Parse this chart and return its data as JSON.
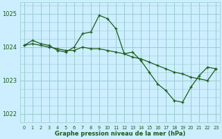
{
  "title": "Graphe pression niveau de la mer (hPa)",
  "bg_color": "#cceeff",
  "grid_color": "#99cccc",
  "line_color": "#1a5c1a",
  "xlabel_color": "#1a5c1a",
  "x_ticks": [
    0,
    1,
    2,
    3,
    4,
    5,
    6,
    7,
    8,
    9,
    10,
    11,
    12,
    13,
    14,
    15,
    16,
    17,
    18,
    19,
    20,
    21,
    22,
    23
  ],
  "ylim": [
    1021.75,
    1025.35
  ],
  "yticks": [
    1022,
    1023,
    1024,
    1025
  ],
  "series1_x": [
    0,
    1,
    2,
    3,
    4,
    5,
    6,
    7,
    8,
    9,
    10,
    11,
    12,
    13,
    14,
    15,
    16,
    17,
    18,
    19,
    20,
    21,
    22,
    23
  ],
  "series1_y": [
    1024.05,
    1024.2,
    1024.1,
    1024.05,
    1023.9,
    1023.85,
    1024.0,
    1024.4,
    1024.45,
    1024.95,
    1024.85,
    1024.55,
    1023.8,
    1023.85,
    1023.6,
    1023.25,
    1022.9,
    1022.7,
    1022.4,
    1022.35,
    1022.8,
    1023.15,
    1023.4,
    1023.35
  ],
  "series2_x": [
    0,
    1,
    2,
    3,
    4,
    5,
    6,
    7,
    8,
    9,
    10,
    11,
    12,
    13,
    14,
    15,
    16,
    17,
    18,
    19,
    20,
    21,
    22,
    23
  ],
  "series2_y": [
    1024.05,
    1024.1,
    1024.05,
    1024.0,
    1023.95,
    1023.9,
    1023.9,
    1024.0,
    1023.95,
    1023.95,
    1023.9,
    1023.85,
    1023.8,
    1023.7,
    1023.65,
    1023.55,
    1023.45,
    1023.35,
    1023.25,
    1023.2,
    1023.1,
    1023.05,
    1023.0,
    1023.35
  ]
}
